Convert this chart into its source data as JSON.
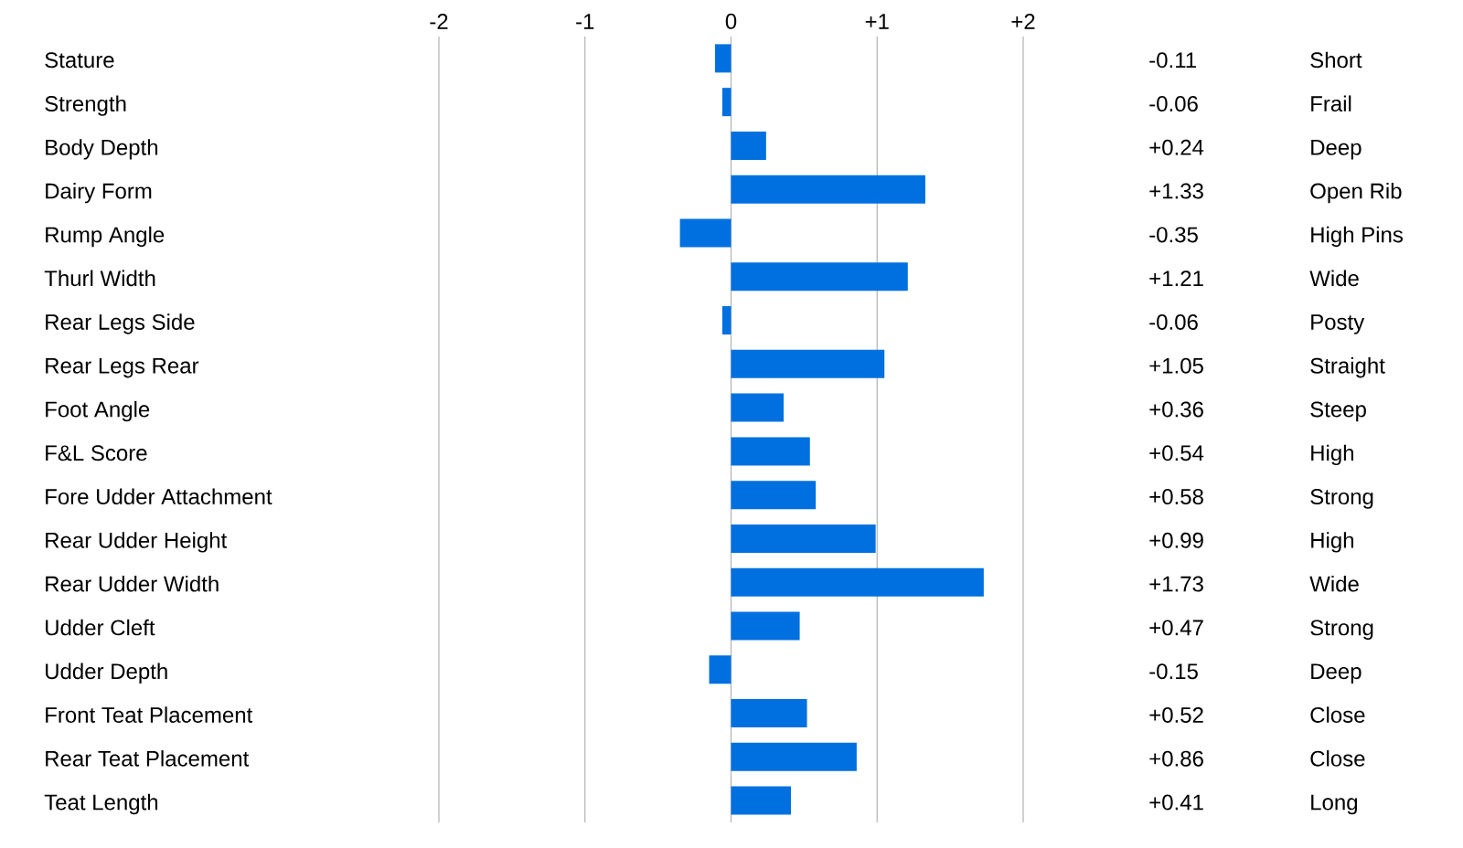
{
  "chart_data": {
    "type": "bar",
    "orientation": "horizontal",
    "grid": "x",
    "color": "#0070e0",
    "categories": [
      "Stature",
      "Strength",
      "Body Depth",
      "Dairy Form",
      "Rump Angle",
      "Thurl Width",
      "Rear Legs Side",
      "Rear Legs Rear",
      "Foot Angle",
      "F&L Score",
      "Fore Udder Attachment",
      "Rear Udder Height",
      "Rear Udder Width",
      "Udder Cleft",
      "Udder Depth",
      "Front Teat Placement",
      "Rear Teat Placement",
      "Teat Length"
    ],
    "values": [
      -0.11,
      -0.06,
      0.24,
      1.33,
      -0.35,
      1.21,
      -0.06,
      1.05,
      0.36,
      0.54,
      0.58,
      0.99,
      1.73,
      0.47,
      -0.15,
      0.52,
      0.86,
      0.41
    ],
    "value_labels": [
      "-0.11",
      "-0.06",
      "+0.24",
      "+1.33",
      "-0.35",
      "+1.21",
      "-0.06",
      "+1.05",
      "+0.36",
      "+0.54",
      "+0.58",
      "+0.99",
      "+1.73",
      "+0.47",
      "-0.15",
      "+0.52",
      "+0.86",
      "+0.41"
    ],
    "xlim": [
      -2,
      2
    ],
    "xticks": [
      {
        "value": -2,
        "label": "-2"
      },
      {
        "value": -1,
        "label": "-1"
      },
      0,
      {
        "value": 1,
        "label": "+1"
      },
      {
        "value": 2,
        "label": "+2"
      }
    ],
    "annotations": [
      "Short",
      "Frail",
      "Deep",
      "Open Rib",
      "High Pins",
      "Wide",
      "Posty",
      "Straight",
      "Steep",
      "High",
      "Strong",
      "High",
      "Wide",
      "Strong",
      "Deep",
      "Close",
      "Close",
      "Long"
    ]
  }
}
